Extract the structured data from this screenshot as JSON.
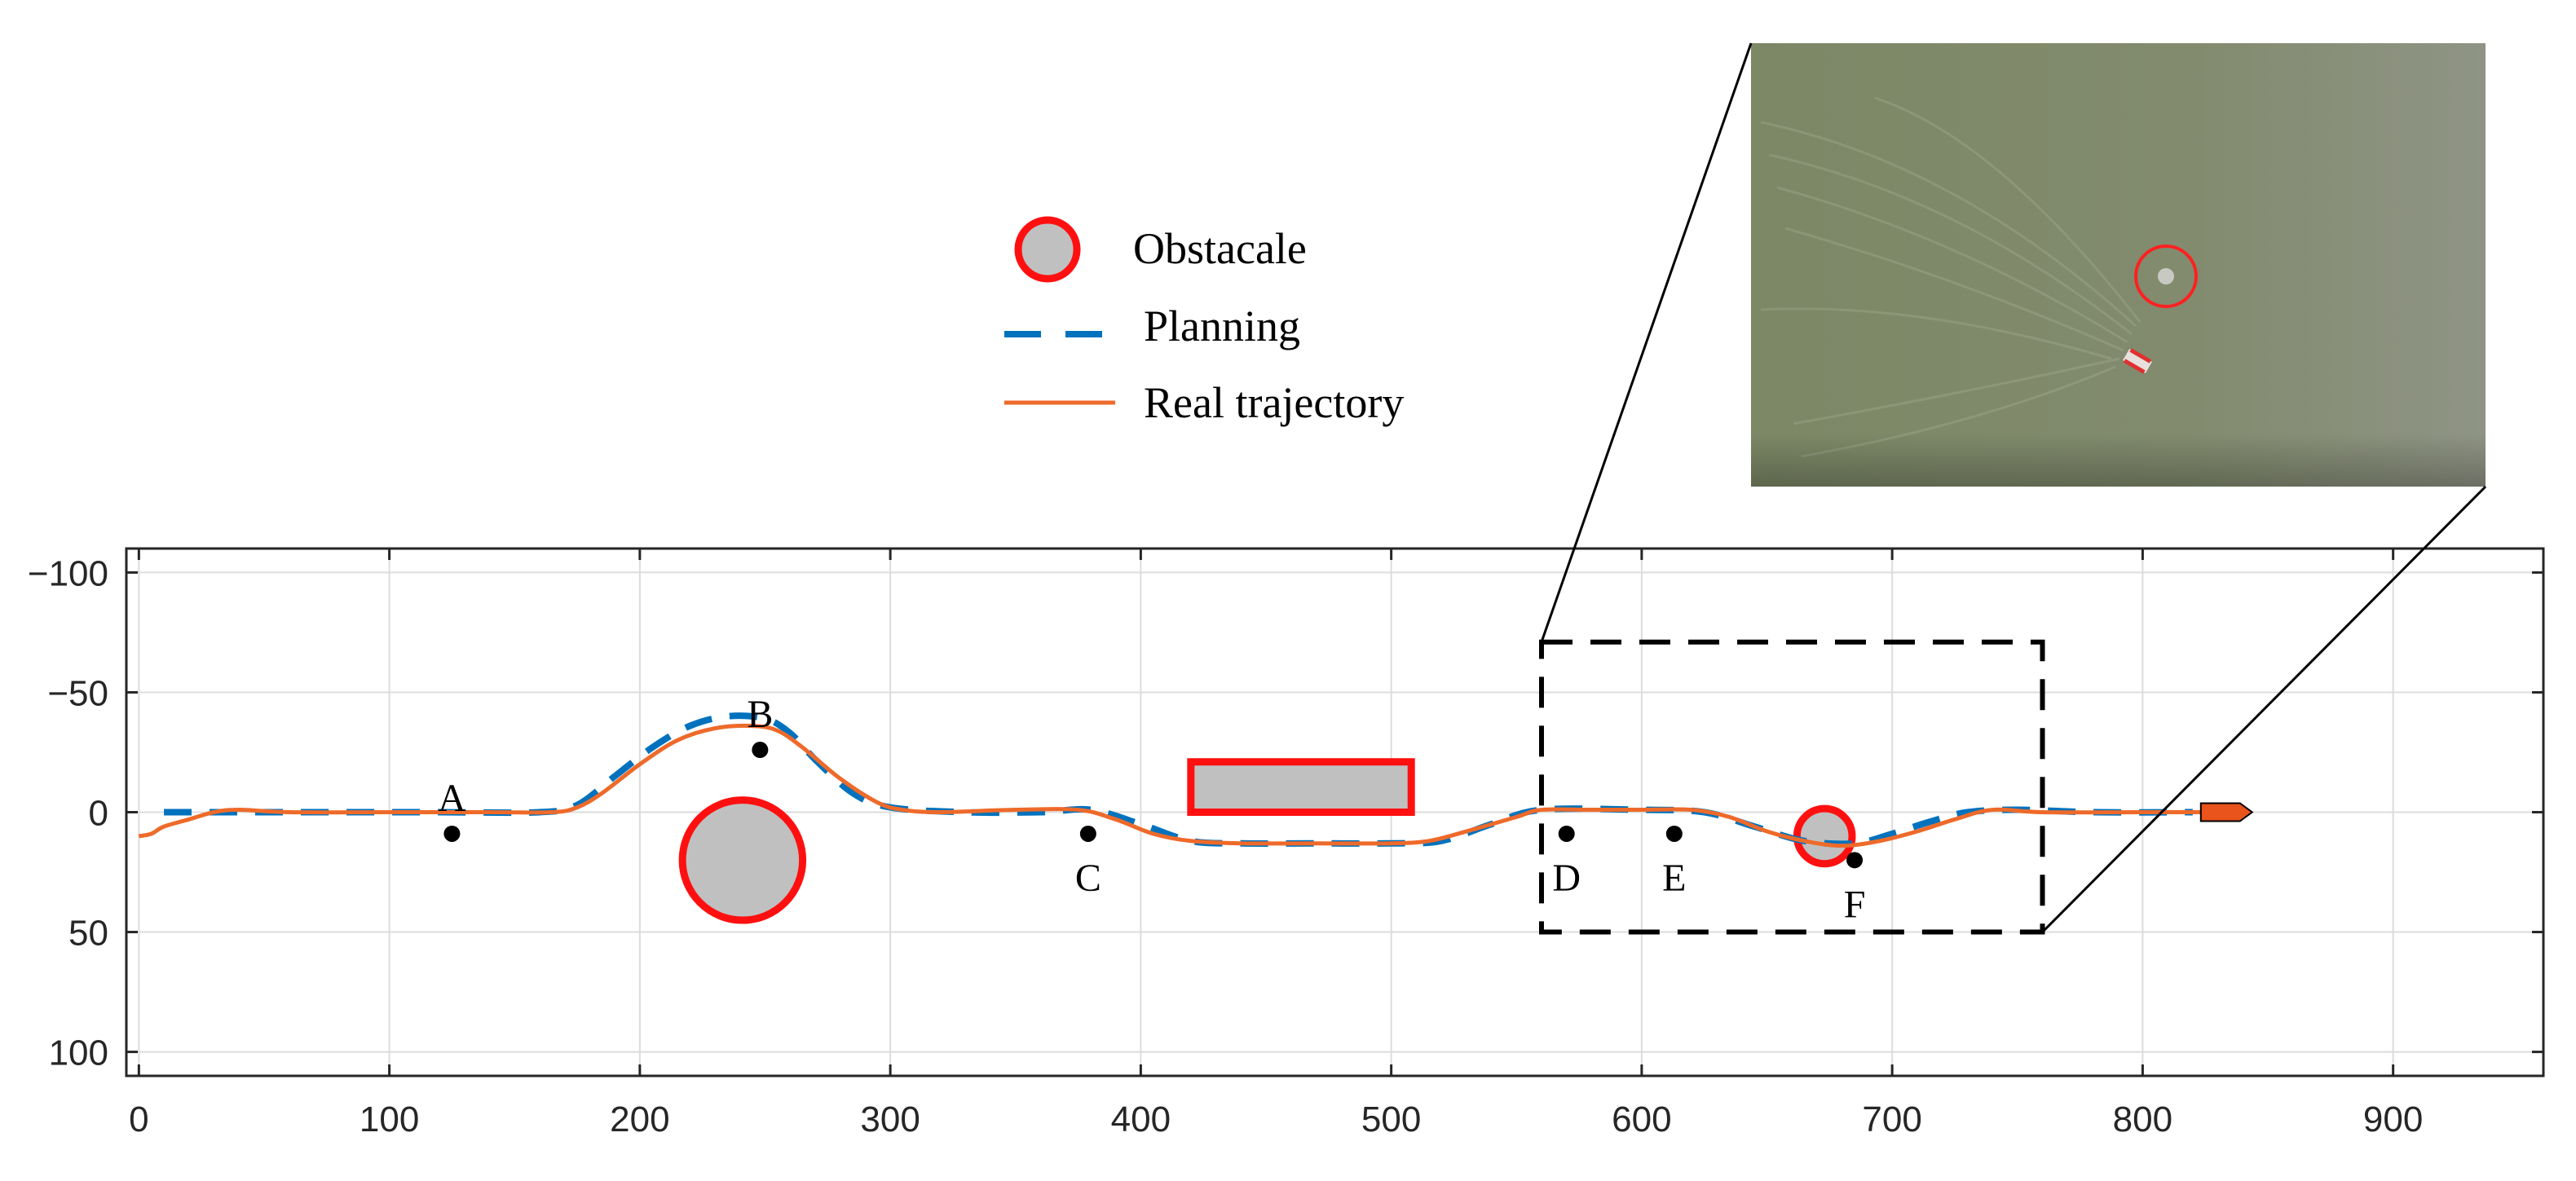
{
  "chart_data": {
    "type": "line",
    "title": "",
    "xlabel": "",
    "ylabel": "",
    "xlim": [
      -5,
      960
    ],
    "ylim": [
      110,
      -110
    ],
    "y_reversed": true,
    "grid": true,
    "xticks": [
      0,
      100,
      200,
      300,
      400,
      500,
      600,
      700,
      800,
      900
    ],
    "yticks": [
      -100,
      -50,
      0,
      50,
      100
    ],
    "xtick_labels": [
      "0",
      "100",
      "200",
      "300",
      "400",
      "500",
      "600",
      "700",
      "800",
      "900"
    ],
    "ytick_labels": [
      "−100",
      "−50",
      "0",
      "50",
      "100"
    ],
    "legend": {
      "placement": "top-center",
      "entries": [
        {
          "key": "obstacle",
          "label": "Obstacale",
          "marker": "circle"
        },
        {
          "key": "planning",
          "label": "Planning",
          "marker": "dashed-line"
        },
        {
          "key": "real",
          "label": "Real trajectory",
          "marker": "solid-line"
        }
      ]
    },
    "series": [
      {
        "name": "Planning",
        "color": "#0072BD",
        "style": "dashed",
        "x": [
          10,
          20,
          40,
          80,
          120,
          160,
          175,
          190,
          205,
          220,
          235,
          250,
          260,
          270,
          285,
          300,
          330,
          360,
          380,
          400,
          420,
          440,
          470,
          500,
          520,
          540,
          560,
          600,
          625,
          645,
          665,
          685,
          700,
          715,
          730,
          750,
          780,
          820
        ],
        "y": [
          0,
          0,
          0,
          0,
          0,
          0,
          -3,
          -15,
          -27,
          -36,
          -40,
          -39,
          -33,
          -22,
          -8,
          -2,
          0,
          0,
          -1,
          5,
          12,
          13,
          13,
          13,
          12,
          5,
          -1,
          -1,
          0,
          6,
          12,
          13,
          9,
          4,
          0,
          -1,
          0,
          0
        ]
      },
      {
        "name": "Real trajectory",
        "color": "#EE6A2A",
        "style": "solid",
        "x": [
          0,
          5,
          10,
          20,
          30,
          40,
          60,
          100,
          140,
          165,
          175,
          185,
          200,
          215,
          230,
          245,
          255,
          265,
          280,
          295,
          305,
          320,
          350,
          375,
          390,
          405,
          420,
          440,
          470,
          500,
          515,
          530,
          550,
          560,
          580,
          600,
          620,
          635,
          650,
          665,
          680,
          695,
          710,
          725,
          740,
          760,
          800,
          825
        ],
        "y": [
          10,
          9,
          6,
          3,
          0,
          -1,
          0,
          0,
          0,
          0,
          -2,
          -8,
          -20,
          -30,
          -35,
          -36,
          -34,
          -27,
          -14,
          -4,
          -1,
          0,
          -1,
          -1,
          3,
          9,
          12,
          13,
          13,
          13,
          12,
          8,
          2,
          -1,
          -1,
          -1,
          -1,
          2,
          8,
          12,
          14,
          12,
          8,
          3,
          -1,
          0,
          0,
          0
        ]
      }
    ],
    "obstacles": [
      {
        "type": "circle",
        "center": [
          241,
          20
        ],
        "radius": 24
      },
      {
        "type": "circle",
        "center": [
          673,
          10
        ],
        "radius": 11
      },
      {
        "type": "rectangle",
        "x0": 420,
        "x1": 508,
        "y0": -21,
        "y1": 0
      }
    ],
    "points": [
      {
        "label": "A",
        "x": 125,
        "y": 9
      },
      {
        "label": "B",
        "x": 248,
        "y": -26
      },
      {
        "label": "C",
        "x": 379,
        "y": 9
      },
      {
        "label": "D",
        "x": 570,
        "y": 9
      },
      {
        "label": "E",
        "x": 613,
        "y": 9
      },
      {
        "label": "F",
        "x": 685,
        "y": 20
      }
    ],
    "zoom_box": {
      "x0": 560,
      "x1": 760,
      "y0": -71,
      "y1": 50
    },
    "vessel": {
      "x": 833,
      "y": 0,
      "color": "#E8541C"
    },
    "inset_photo": {
      "description_visible": "aerial photo",
      "tone_color": "#7f8a6c",
      "highlight_color": "#ff2020"
    }
  }
}
